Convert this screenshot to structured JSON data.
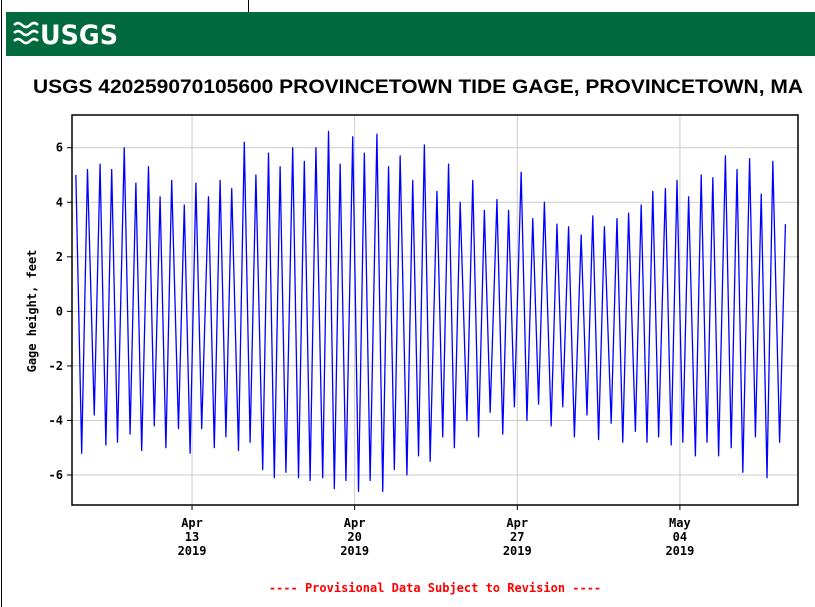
{
  "chart_data": {
    "type": "line",
    "logo": "USGS",
    "title": "USGS 420259070105600 PROVINCETOWN TIDE GAGE, PROVINCETOWN, MA",
    "ylabel": "Gage height, feet",
    "note": "---- Provisional Data Subject to Revision ----",
    "grid": true,
    "xlim": [
      "2019-04-07T20:00",
      "2019-05-09T02:00"
    ],
    "xticks": [
      {
        "value": "2019-04-13T00:00",
        "label": "Apr 13 2019"
      },
      {
        "value": "2019-04-20T00:00",
        "label": "Apr 20 2019"
      },
      {
        "value": "2019-04-27T00:00",
        "label": "Apr 27 2019"
      },
      {
        "value": "2019-05-04T00:00",
        "label": "May 04 2019"
      }
    ],
    "ylim": [
      -7.1,
      7.2
    ],
    "yticks": [
      -6,
      -4,
      -2,
      0,
      2,
      4,
      6
    ],
    "x": [
      "2019-04-08T00:00",
      "2019-04-08T06:00",
      "2019-04-08T12:00",
      "2019-04-08T19:00",
      "2019-04-09T01:00",
      "2019-04-09T07:00",
      "2019-04-09T13:00",
      "2019-04-09T19:00",
      "2019-04-10T02:00",
      "2019-04-10T08:00",
      "2019-04-10T14:00",
      "2019-04-10T20:00",
      "2019-04-11T03:00",
      "2019-04-11T09:00",
      "2019-04-11T15:00",
      "2019-04-11T21:00",
      "2019-04-12T03:00",
      "2019-04-12T10:00",
      "2019-04-12T16:00",
      "2019-04-12T22:00",
      "2019-04-13T04:00",
      "2019-04-13T10:00",
      "2019-04-13T17:00",
      "2019-04-13T23:00",
      "2019-04-14T05:00",
      "2019-04-14T11:00",
      "2019-04-14T17:00",
      "2019-04-15T00:00",
      "2019-04-15T06:00",
      "2019-04-15T12:00",
      "2019-04-15T18:00",
      "2019-04-16T01:00",
      "2019-04-16T07:00",
      "2019-04-16T13:00",
      "2019-04-16T19:00",
      "2019-04-17T01:00",
      "2019-04-17T08:00",
      "2019-04-17T14:00",
      "2019-04-17T20:00",
      "2019-04-18T02:00",
      "2019-04-18T08:00",
      "2019-04-18T15:00",
      "2019-04-18T21:00",
      "2019-04-19T03:00",
      "2019-04-19T09:00",
      "2019-04-19T15:00",
      "2019-04-19T22:00",
      "2019-04-20T04:00",
      "2019-04-20T10:00",
      "2019-04-20T16:00",
      "2019-04-20T23:00",
      "2019-04-21T05:00",
      "2019-04-21T11:00",
      "2019-04-21T17:00",
      "2019-04-21T23:00",
      "2019-04-22T06:00",
      "2019-04-22T12:00",
      "2019-04-22T18:00",
      "2019-04-23T00:00",
      "2019-04-23T06:00",
      "2019-04-23T13:00",
      "2019-04-23T19:00",
      "2019-04-24T01:00",
      "2019-04-24T07:00",
      "2019-04-24T13:00",
      "2019-04-24T20:00",
      "2019-04-25T02:00",
      "2019-04-25T08:00",
      "2019-04-25T14:00",
      "2019-04-25T20:00",
      "2019-04-26T03:00",
      "2019-04-26T09:00",
      "2019-04-26T15:00",
      "2019-04-26T21:00",
      "2019-04-27T04:00",
      "2019-04-27T10:00",
      "2019-04-27T16:00",
      "2019-04-27T22:00",
      "2019-04-28T04:00",
      "2019-04-28T11:00",
      "2019-04-28T17:00",
      "2019-04-28T23:00",
      "2019-04-29T05:00",
      "2019-04-29T11:00",
      "2019-04-29T18:00",
      "2019-04-30T00:00",
      "2019-04-30T06:00",
      "2019-04-30T12:00",
      "2019-04-30T18:00",
      "2019-05-01T01:00",
      "2019-05-01T07:00",
      "2019-05-01T13:00",
      "2019-05-01T19:00",
      "2019-05-02T02:00",
      "2019-05-02T08:00",
      "2019-05-02T14:00",
      "2019-05-02T20:00",
      "2019-05-03T02:00",
      "2019-05-03T09:00",
      "2019-05-03T15:00",
      "2019-05-03T21:00",
      "2019-05-04T03:00",
      "2019-05-04T09:00",
      "2019-05-04T16:00",
      "2019-05-04T22:00",
      "2019-05-05T04:00",
      "2019-05-05T10:00",
      "2019-05-05T16:00",
      "2019-05-05T23:00",
      "2019-05-06T05:00",
      "2019-05-06T11:00",
      "2019-05-06T17:00",
      "2019-05-07T00:00",
      "2019-05-07T06:00",
      "2019-05-07T12:00",
      "2019-05-07T18:00",
      "2019-05-08T00:00",
      "2019-05-08T07:00",
      "2019-05-08T13:00"
    ],
    "series": [
      {
        "name": "Gage height",
        "color": "#0000ff",
        "values": [
          5.0,
          -5.2,
          5.2,
          -3.8,
          5.4,
          -4.9,
          5.2,
          -4.8,
          6.0,
          -4.5,
          4.7,
          -5.1,
          5.3,
          -4.2,
          4.2,
          -5.0,
          4.8,
          -4.3,
          3.9,
          -5.2,
          4.7,
          -4.3,
          4.2,
          -5.0,
          4.8,
          -4.6,
          4.5,
          -5.1,
          6.2,
          -4.8,
          5.0,
          -5.8,
          5.8,
          -6.1,
          5.3,
          -5.9,
          6.0,
          -6.1,
          5.5,
          -6.2,
          6.0,
          -6.1,
          6.6,
          -6.5,
          5.4,
          -6.2,
          6.4,
          -6.6,
          5.8,
          -6.2,
          6.5,
          -6.6,
          5.3,
          -5.8,
          5.7,
          -6.0,
          4.8,
          -5.3,
          6.1,
          -5.5,
          4.4,
          -4.6,
          5.4,
          -5.0,
          4.0,
          -4.0,
          4.8,
          -4.6,
          3.7,
          -3.7,
          4.1,
          -4.5,
          3.7,
          -3.5,
          5.1,
          -4.0,
          3.4,
          -3.4,
          4.0,
          -4.2,
          3.2,
          -3.5,
          3.1,
          -4.6,
          2.8,
          -3.8,
          3.5,
          -4.7,
          3.1,
          -4.1,
          3.4,
          -4.8,
          3.6,
          -4.4,
          3.9,
          -4.8,
          4.4,
          -4.6,
          4.5,
          -4.9,
          4.8,
          -4.8,
          4.2,
          -5.3,
          5.0,
          -4.8,
          4.9,
          -5.3,
          5.7,
          -5.0,
          5.2,
          -5.9,
          5.6,
          -4.6,
          4.3,
          -6.1,
          5.5,
          -4.8,
          3.2
        ]
      }
    ]
  }
}
